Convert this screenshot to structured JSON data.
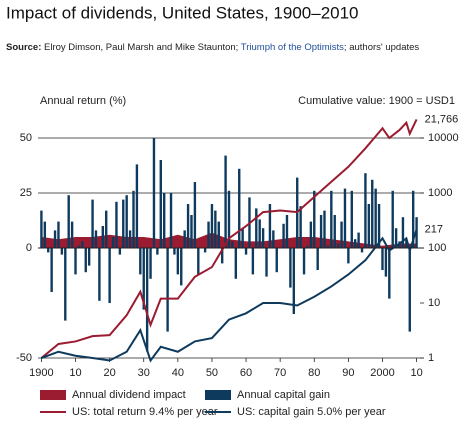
{
  "chart_data": {
    "type": "bar",
    "title": "Impact of dividends, United States, 1900–2010",
    "source": {
      "label": "Source:",
      "text": "Elroy Dimson, Paul Marsh and Mike Staunton;",
      "link": "Triumph of the Optimists",
      "tail": "; authors' updates"
    },
    "y_label": "Annual return (%)",
    "y2_label": "Cumulative value: 1900 = USD1",
    "xlim": [
      1899,
      2011
    ],
    "xticks": [
      1900,
      {
        "value": 1910,
        "label": "10"
      },
      {
        "value": 1920,
        "label": "20"
      },
      {
        "value": 1930,
        "label": "30"
      },
      {
        "value": 1940,
        "label": "40"
      },
      {
        "value": 1950,
        "label": "50"
      },
      {
        "value": 1960,
        "label": "60"
      },
      {
        "value": 1970,
        "label": "70"
      },
      {
        "value": 1980,
        "label": "80"
      },
      {
        "value": 1990,
        "label": "90"
      },
      2000,
      {
        "value": 2010,
        "label": "10"
      }
    ],
    "ylim": [
      -50,
      50
    ],
    "yticks": [
      -50,
      0,
      25,
      50
    ],
    "y2lim": [
      1,
      10000
    ],
    "y2ticks": [
      1,
      10,
      100,
      1000,
      10000
    ],
    "y2_log": true,
    "series": [
      {
        "name": "Annual dividend impact",
        "type": "area",
        "color": "#9b1b30",
        "x": [
          1900,
          1905,
          1910,
          1915,
          1920,
          1925,
          1930,
          1935,
          1940,
          1945,
          1950,
          1955,
          1960,
          1965,
          1970,
          1975,
          1980,
          1985,
          1990,
          1995,
          2000,
          2005,
          2010
        ],
        "values": [
          5,
          4,
          5,
          5,
          6,
          5,
          5,
          4,
          6,
          4,
          7,
          4,
          3,
          3,
          4,
          5,
          5,
          4,
          3,
          2,
          1,
          2,
          2
        ]
      },
      {
        "name": "Annual capital gain",
        "type": "bar",
        "color": "#0e3a5e",
        "x": [
          1900,
          1901,
          1902,
          1903,
          1904,
          1905,
          1906,
          1907,
          1908,
          1909,
          1910,
          1911,
          1912,
          1913,
          1914,
          1915,
          1916,
          1917,
          1918,
          1919,
          1920,
          1921,
          1922,
          1923,
          1924,
          1925,
          1926,
          1927,
          1928,
          1929,
          1930,
          1931,
          1932,
          1933,
          1934,
          1935,
          1936,
          1937,
          1938,
          1939,
          1940,
          1941,
          1942,
          1943,
          1944,
          1945,
          1946,
          1947,
          1948,
          1949,
          1950,
          1951,
          1952,
          1953,
          1954,
          1955,
          1956,
          1957,
          1958,
          1959,
          1960,
          1961,
          1962,
          1963,
          1964,
          1965,
          1966,
          1967,
          1968,
          1969,
          1970,
          1971,
          1972,
          1973,
          1974,
          1975,
          1976,
          1977,
          1978,
          1979,
          1980,
          1981,
          1982,
          1983,
          1984,
          1985,
          1986,
          1987,
          1988,
          1989,
          1990,
          1991,
          1992,
          1993,
          1994,
          1995,
          1996,
          1997,
          1998,
          1999,
          2000,
          2001,
          2002,
          2003,
          2004,
          2005,
          2006,
          2007,
          2008,
          2009,
          2010
        ],
        "values": [
          17,
          12,
          -2,
          -20,
          8,
          12,
          -3,
          -33,
          24,
          12,
          -12,
          1,
          3,
          -11,
          -8,
          22,
          8,
          -24,
          10,
          17,
          -25,
          5,
          21,
          -3,
          22,
          24,
          8,
          26,
          38,
          -12,
          -28,
          -47,
          -14,
          50,
          -3,
          40,
          25,
          -38,
          25,
          -3,
          -12,
          -17,
          8,
          20,
          15,
          30,
          -12,
          0,
          -2,
          12,
          20,
          17,
          12,
          -7,
          42,
          26,
          3,
          -14,
          36,
          9,
          -3,
          23,
          -12,
          18,
          13,
          9,
          -13,
          20,
          8,
          -11,
          0,
          11,
          15,
          -18,
          -30,
          32,
          19,
          -12,
          1,
          12,
          26,
          -10,
          15,
          17,
          1,
          26,
          15,
          2,
          12,
          27,
          -7,
          26,
          4,
          7,
          -2,
          34,
          20,
          31,
          27,
          20,
          -10,
          -13,
          -23,
          26,
          9,
          3,
          14,
          4,
          -38,
          26,
          14
        ]
      },
      {
        "name": "US: total return 9.4% per year",
        "type": "line",
        "axis": "y2",
        "color": "#9b1b30",
        "x": [
          1900,
          1905,
          1910,
          1915,
          1920,
          1925,
          1929,
          1932,
          1935,
          1940,
          1945,
          1950,
          1955,
          1960,
          1965,
          1970,
          1975,
          1980,
          1985,
          1990,
          1995,
          2000,
          2002,
          2005,
          2007,
          2008,
          2010
        ],
        "values": [
          1,
          1.8,
          2,
          2.5,
          2.6,
          6,
          16,
          4,
          12,
          12,
          30,
          45,
          150,
          250,
          450,
          480,
          450,
          850,
          1600,
          3000,
          6500,
          15000,
          10000,
          14000,
          19000,
          12000,
          21766
        ],
        "value_labels": [
          null,
          null,
          null,
          null,
          null,
          null,
          null,
          null,
          null,
          null,
          null,
          null,
          null,
          null,
          null,
          null,
          null,
          null,
          null,
          null,
          null,
          null,
          null,
          null,
          null,
          null,
          "21,766"
        ]
      },
      {
        "name": "US: capital gain 5.0% per year",
        "type": "line",
        "axis": "y2",
        "color": "#0e3a5e",
        "x": [
          1900,
          1905,
          1910,
          1915,
          1920,
          1925,
          1929,
          1932,
          1935,
          1940,
          1945,
          1950,
          1955,
          1960,
          1965,
          1970,
          1975,
          1980,
          1985,
          1990,
          1995,
          2000,
          2002,
          2005,
          2007,
          2008,
          2010
        ],
        "values": [
          1,
          1.3,
          1.1,
          1,
          0.9,
          1.3,
          3.2,
          0.9,
          1.6,
          1.3,
          2,
          2.3,
          5,
          6.5,
          10,
          10,
          9,
          13,
          20,
          33,
          60,
          150,
          90,
          120,
          150,
          90,
          217
        ],
        "value_labels": [
          null,
          null,
          null,
          null,
          null,
          null,
          null,
          null,
          null,
          null,
          null,
          null,
          null,
          null,
          null,
          null,
          null,
          null,
          null,
          null,
          null,
          null,
          null,
          null,
          null,
          null,
          "217"
        ]
      }
    ]
  }
}
